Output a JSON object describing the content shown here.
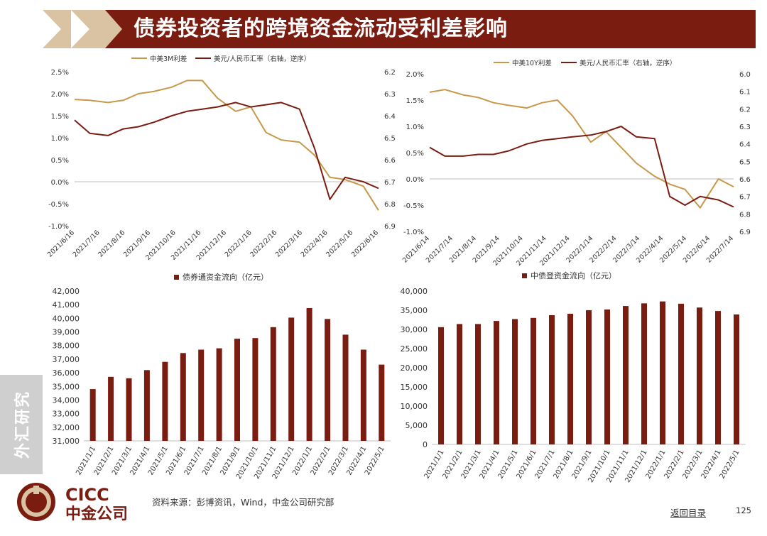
{
  "page": {
    "title": "债券投资者的跨境资金流动受利差影响",
    "side_tab": "外汇研究",
    "source": "资料来源：彭博资讯，Wind，中金公司研究部",
    "back_link": "返回目录",
    "page_number": "125",
    "logo_en": "CICC",
    "logo_cn": "中金公司"
  },
  "colors": {
    "gold": "#c8984a",
    "maroon": "#7a1c10",
    "banner": "#7a1c10",
    "chevron": "#d9c3a3",
    "side_tab": "#cfcfcf"
  },
  "chart_data": [
    {
      "type": "line",
      "title": "",
      "legend_position": "top",
      "x": [
        "2021/6/16",
        "2021/7/16",
        "2021/8/16",
        "2021/9/16",
        "2021/10/16",
        "2021/11/16",
        "2021/12/16",
        "2022/1/16",
        "2022/2/16",
        "2022/3/16",
        "2022/4/16",
        "2022/5/16",
        "2022/6/16"
      ],
      "x_labels": [
        "2021/6/16",
        "2021/7/16",
        "2021/8/16",
        "2021/9/16",
        "2021/10/16",
        "2021/11/16",
        "2021/12/16",
        "2022/1/16",
        "2022/2/16",
        "2022/3/16",
        "2022/4/16",
        "2022/5/16",
        "2022/6/16"
      ],
      "y_left_ticks": [
        "2.5%",
        "2.0%",
        "1.5%",
        "1.0%",
        "0.5%",
        "0.0%",
        "-0.5%",
        "-1.0%"
      ],
      "ylim_left": [
        -1.0,
        2.5
      ],
      "y_right_ticks": [
        "6.2",
        "6.3",
        "6.4",
        "6.5",
        "6.6",
        "6.7",
        "6.8",
        "6.9"
      ],
      "ylim_right": [
        6.2,
        6.9
      ],
      "right_axis_inverted": true,
      "series": [
        {
          "name": "中美3M利差",
          "axis": "left",
          "color": "#c8984a",
          "values": [
            1.87,
            1.85,
            1.8,
            1.85,
            2.0,
            2.05,
            2.15,
            2.3,
            2.3,
            1.9,
            1.6,
            1.7,
            1.12,
            0.95,
            0.9,
            0.6,
            0.1,
            0.05,
            -0.1,
            -0.65
          ]
        },
        {
          "name": "美元/人民币汇率（右轴，逆序）",
          "axis": "right",
          "color": "#7a1c10",
          "values": [
            6.42,
            6.48,
            6.49,
            6.46,
            6.45,
            6.43,
            6.4,
            6.38,
            6.37,
            6.36,
            6.34,
            6.36,
            6.35,
            6.34,
            6.37,
            6.55,
            6.78,
            6.68,
            6.7,
            6.73
          ]
        }
      ],
      "x_values": [
        0.0,
        0.05,
        0.11,
        0.16,
        0.21,
        0.26,
        0.32,
        0.37,
        0.42,
        0.47,
        0.53,
        0.58,
        0.63,
        0.68,
        0.74,
        0.79,
        0.84,
        0.89,
        0.95,
        1.0
      ]
    },
    {
      "type": "line",
      "title": "",
      "legend_position": "top",
      "x": [
        "2021/6/14",
        "2021/7/14",
        "2021/8/14",
        "2021/9/14",
        "2021/10/14",
        "2021/11/14",
        "2021/12/14",
        "2022/1/14",
        "2022/2/14",
        "2022/3/14",
        "2022/4/14",
        "2022/5/14",
        "2022/6/14",
        "2022/7/14"
      ],
      "x_labels": [
        "2021/6/14",
        "2021/7/14",
        "2021/8/14",
        "2021/9/14",
        "2021/10/14",
        "2021/11/14",
        "2021/12/14",
        "2022/1/14",
        "2022/2/14",
        "2022/3/14",
        "2022/4/14",
        "2022/5/14",
        "2022/6/14",
        "2022/7/14"
      ],
      "y_left_ticks": [
        "2.0%",
        "1.5%",
        "1.0%",
        "0.5%",
        "0.0%",
        "-0.5%",
        "-1.0%"
      ],
      "ylim_left": [
        -1.0,
        2.0
      ],
      "y_right_ticks": [
        "6.0",
        "6.1",
        "6.2",
        "6.3",
        "6.4",
        "6.5",
        "6.6",
        "6.7",
        "6.8",
        "6.9"
      ],
      "ylim_right": [
        6.0,
        6.9
      ],
      "right_axis_inverted": true,
      "series": [
        {
          "name": "中美10Y利差",
          "axis": "left",
          "color": "#c8984a",
          "values": [
            1.65,
            1.7,
            1.6,
            1.55,
            1.45,
            1.4,
            1.35,
            1.45,
            1.5,
            1.2,
            0.7,
            0.9,
            0.6,
            0.3,
            0.05,
            -0.1,
            -0.2,
            -0.55,
            0.0,
            -0.15
          ]
        },
        {
          "name": "美元/人民币汇率（右轴，逆序）",
          "axis": "right",
          "color": "#7a1c10",
          "values": [
            6.42,
            6.47,
            6.47,
            6.46,
            6.46,
            6.44,
            6.4,
            6.38,
            6.37,
            6.36,
            6.35,
            6.33,
            6.3,
            6.36,
            6.37,
            6.7,
            6.75,
            6.7,
            6.72,
            6.76
          ]
        }
      ],
      "x_values": [
        0.0,
        0.05,
        0.11,
        0.16,
        0.21,
        0.26,
        0.32,
        0.37,
        0.42,
        0.47,
        0.53,
        0.58,
        0.63,
        0.68,
        0.74,
        0.79,
        0.84,
        0.89,
        0.95,
        1.0
      ]
    },
    {
      "type": "bar",
      "title": "",
      "legend_position": "top",
      "categories": [
        "2021/1/1",
        "2021/2/1",
        "2021/3/1",
        "2021/4/1",
        "2021/5/1",
        "2021/6/1",
        "2021/7/1",
        "2021/8/1",
        "2021/9/1",
        "2021/10/1",
        "2021/11/1",
        "2021/12/1",
        "2022/1/1",
        "2022/2/1",
        "2022/3/1",
        "2022/4/1",
        "2022/5/1"
      ],
      "series": [
        {
          "name": "债券通资金流向（亿元）",
          "color": "#7a1c10",
          "values": [
            34800,
            35700,
            35600,
            36200,
            36800,
            37450,
            37700,
            37800,
            38500,
            38550,
            39350,
            40050,
            40750,
            39950,
            38800,
            37700,
            36600
          ]
        }
      ],
      "y_ticks": [
        "42,000",
        "41,000",
        "40,000",
        "39,000",
        "38,000",
        "37,000",
        "36,000",
        "35,000",
        "34,000",
        "33,000",
        "32,000",
        "31,000"
      ],
      "ylim": [
        31000,
        42000
      ]
    },
    {
      "type": "bar",
      "title": "",
      "legend_position": "top",
      "categories": [
        "2021/1/1",
        "2021/2/1",
        "2021/3/1",
        "2021/4/1",
        "2021/5/1",
        "2021/6/1",
        "2021/7/1",
        "2021/8/1",
        "2021/9/1",
        "2021/10/1",
        "2021/11/1",
        "2021/12/1",
        "2022/1/1",
        "2022/2/1",
        "2022/3/1",
        "2022/4/1",
        "2022/5/1"
      ],
      "series": [
        {
          "name": "中债登资金流向（亿元）",
          "color": "#7a1c10",
          "values": [
            30600,
            31400,
            31400,
            32200,
            32700,
            33000,
            33700,
            34100,
            35000,
            35200,
            36100,
            36800,
            37300,
            36700,
            35700,
            34800,
            33900
          ]
        }
      ],
      "y_ticks": [
        "40,000",
        "35,000",
        "30,000",
        "25,000",
        "20,000",
        "15,000",
        "10,000",
        "5,000",
        "0"
      ],
      "ylim": [
        0,
        40000
      ]
    }
  ]
}
